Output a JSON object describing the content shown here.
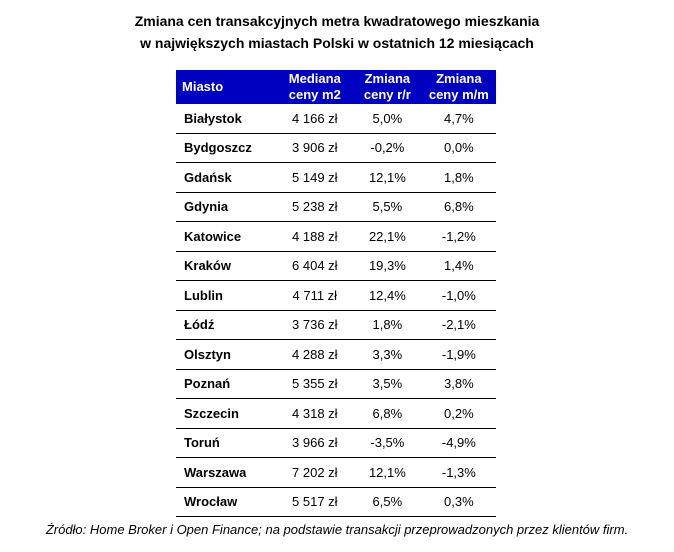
{
  "title": {
    "line1": "Zmiana cen transakcyjnych metra kwadratowego mieszkania",
    "line2": "w największych miastach Polski w ostatnich 12 miesiącach"
  },
  "table": {
    "headers": {
      "city": "Miasto",
      "median_l1": "Mediana",
      "median_l2": "ceny m2",
      "yoy_l1": "Zmiana",
      "yoy_l2": "ceny r/r",
      "mom_l1": "Zmiana",
      "mom_l2": "ceny m/m"
    },
    "rows": [
      {
        "city": "Białystok",
        "median": "4 166 zł",
        "yoy": "5,0%",
        "mom": "4,7%"
      },
      {
        "city": "Bydgoszcz",
        "median": "3 906 zł",
        "yoy": "-0,2%",
        "mom": "0,0%"
      },
      {
        "city": "Gdańsk",
        "median": "5 149 zł",
        "yoy": "12,1%",
        "mom": "1,8%"
      },
      {
        "city": "Gdynia",
        "median": "5 238 zł",
        "yoy": "5,5%",
        "mom": "6,8%"
      },
      {
        "city": "Katowice",
        "median": "4 188 zł",
        "yoy": "22,1%",
        "mom": "-1,2%"
      },
      {
        "city": "Kraków",
        "median": "6 404 zł",
        "yoy": "19,3%",
        "mom": "1,4%"
      },
      {
        "city": "Lublin",
        "median": "4 711 zł",
        "yoy": "12,4%",
        "mom": "-1,0%"
      },
      {
        "city": "Łódź",
        "median": "3 736 zł",
        "yoy": "1,8%",
        "mom": "-2,1%"
      },
      {
        "city": "Olsztyn",
        "median": "4 288 zł",
        "yoy": "3,3%",
        "mom": "-1,9%"
      },
      {
        "city": "Poznań",
        "median": "5 355 zł",
        "yoy": "3,5%",
        "mom": "3,8%"
      },
      {
        "city": "Szczecin",
        "median": "4 318 zł",
        "yoy": "6,8%",
        "mom": "0,2%"
      },
      {
        "city": "Toruń",
        "median": "3 966 zł",
        "yoy": "-3,5%",
        "mom": "-4,9%"
      },
      {
        "city": "Warszawa",
        "median": "7 202 zł",
        "yoy": "12,1%",
        "mom": "-1,3%"
      },
      {
        "city": "Wrocław",
        "median": "5 517 zł",
        "yoy": "6,5%",
        "mom": "0,3%"
      }
    ]
  },
  "source": "Źródło: Home Broker i Open Finance; na podstawie transakcji przeprowadzonych przez klientów firm."
}
